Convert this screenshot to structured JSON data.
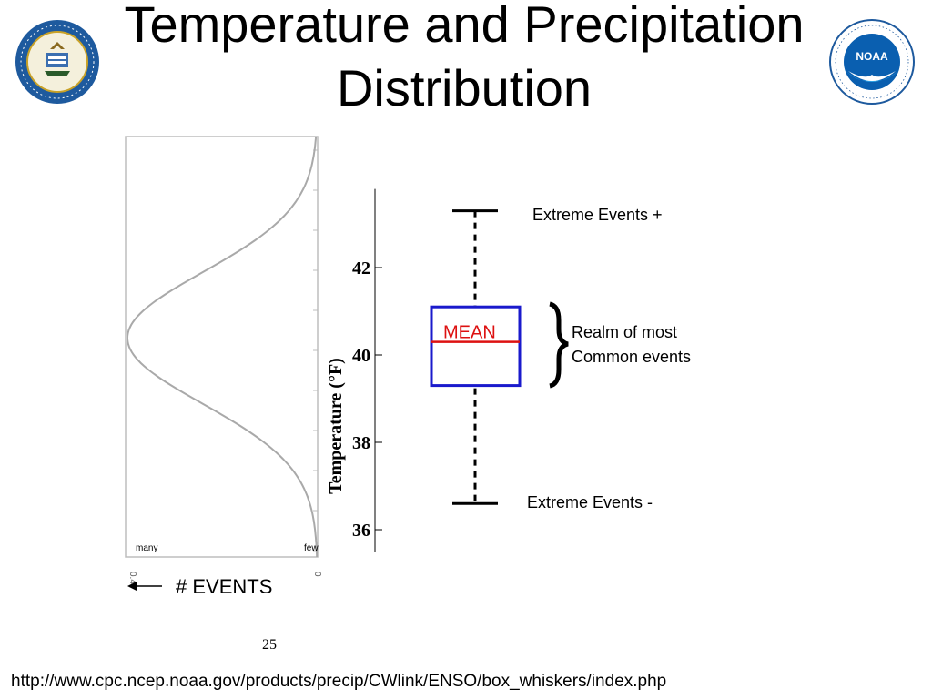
{
  "title": {
    "line1": "Temperature and Precipitation",
    "line2": "Distribution"
  },
  "logos": {
    "left": {
      "icon": "department-of-commerce-seal-icon",
      "text": "DEPARTMENT OF COMMERCE · UNITED STATES OF AMERICA"
    },
    "right": {
      "icon": "noaa-seal-icon",
      "text": "NATIONAL OCEANIC AND ATMOSPHERIC ADMINISTRATION · U.S. DEPARTMENT OF COMMERCE",
      "badge": "NOAA"
    }
  },
  "chart_data": [
    {
      "type": "line",
      "description_kind": "distribution-curve",
      "x_axis_labels": {
        "left": "many",
        "right": "few"
      },
      "x_axis_ticks": [
        "0.4",
        "0"
      ],
      "events_label": "# EVENTS",
      "peak_temperature": 40.2,
      "ylim": [
        35.2,
        44.8
      ]
    },
    {
      "type": "box",
      "ylabel": "Temperature (°F)",
      "yticks": [
        36,
        38,
        40,
        42
      ],
      "ylim": [
        35.5,
        43.8
      ],
      "whisker_high": 43.3,
      "box_high": 41.1,
      "mean": 40.3,
      "box_low": 39.3,
      "whisker_low": 36.6,
      "labels": {
        "mean": "MEAN",
        "extreme_high": "Extreme Events +",
        "extreme_low": "Extreme Events -",
        "realm_line1": "Realm of most",
        "realm_line2": "Common events"
      },
      "colors": {
        "box": "#1a1acc",
        "mean": "#dd1111",
        "whisker": "#000000"
      }
    }
  ],
  "slide_number": "25",
  "source_url": "http://www.cpc.ncep.noaa.gov/products/precip/CWlink/ENSO/box_whiskers/index.php"
}
